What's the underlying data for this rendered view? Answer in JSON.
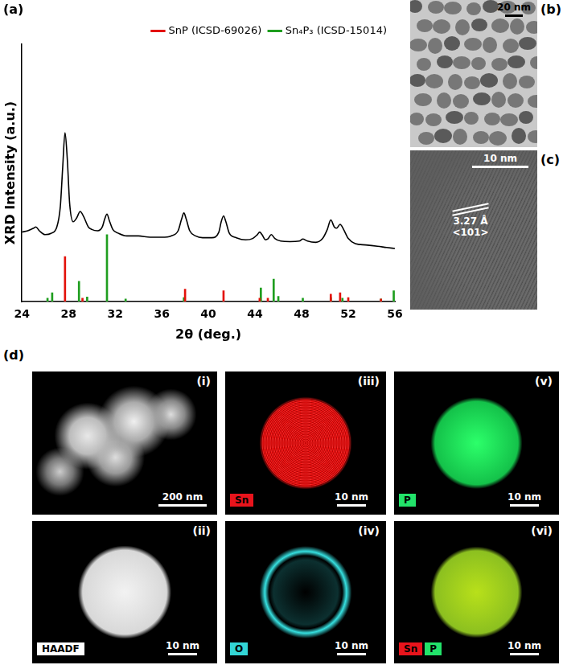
{
  "chart_data": {
    "type": "line",
    "label": "(a)",
    "x_label": "2θ (deg.)",
    "y_label": "XRD Intensity (a.u.)",
    "xlim": [
      24,
      56
    ],
    "xticks": [
      24,
      28,
      32,
      36,
      40,
      44,
      48,
      52,
      56
    ],
    "ylim": [
      0,
      100
    ],
    "tick_labels": "x",
    "grid": false,
    "legend": "upper right",
    "series": [
      {
        "type": "line",
        "color": "#000000",
        "x": [
          24,
          24.5,
          25,
          25.2,
          25.5,
          26,
          26.5,
          27,
          27.3,
          27.5,
          27.7,
          27.9,
          28.1,
          28.4,
          28.7,
          29,
          29.3,
          29.7,
          30,
          30.5,
          30.9,
          31.1,
          31.3,
          31.5,
          31.8,
          32.3,
          33,
          34,
          35,
          36,
          36.8,
          37.4,
          37.7,
          37.9,
          38.1,
          38.4,
          38.9,
          39.5,
          40.3,
          40.9,
          41.1,
          41.3,
          41.5,
          41.8,
          42.4,
          43.2,
          43.8,
          44.2,
          44.4,
          44.6,
          44.9,
          45.1,
          45.4,
          45.7,
          46.2,
          47,
          47.8,
          48.1,
          48.5,
          49.2,
          49.8,
          50.2,
          50.5,
          50.8,
          51.0,
          51.3,
          51.6,
          52.0,
          52.6,
          53.5,
          54.5,
          55.3,
          56
        ],
        "values": [
          27,
          27.5,
          28.5,
          29,
          27.5,
          26,
          26.5,
          29,
          37,
          52,
          65.6,
          55,
          38,
          31,
          32.5,
          35,
          33,
          29,
          28,
          27.5,
          29,
          32,
          34,
          31.5,
          28,
          26.5,
          25.5,
          25.5,
          25,
          25,
          25.5,
          27.5,
          32,
          34.4,
          32,
          27.5,
          25.5,
          24.8,
          24.8,
          27,
          31,
          33.3,
          31,
          26.5,
          24.8,
          24,
          24.5,
          26,
          27,
          26,
          24,
          24.3,
          26,
          24.5,
          23.5,
          23.3,
          23.5,
          24.3,
          23.5,
          23,
          24.5,
          28,
          31.7,
          29,
          28.5,
          30,
          28,
          24.5,
          22.5,
          22,
          21.5,
          21,
          20.6
        ]
      },
      {
        "name": "SnP (ICSD-69026)",
        "type": "bar",
        "color": "#e3120b",
        "x": [
          27.7,
          29.2,
          38.0,
          41.3,
          44.4,
          45.1,
          50.5,
          51.3,
          52.0,
          54.8
        ],
        "values": [
          17.5,
          1.3,
          4.8,
          4.2,
          1.3,
          1.3,
          2.9,
          3.4,
          1.5,
          1.0
        ]
      },
      {
        "name": "Sn₄P₃ (ICSD-15014)",
        "type": "bar",
        "color": "#1f9e1f",
        "x": [
          26.2,
          26.6,
          28.9,
          29.6,
          31.3,
          32.9,
          37.9,
          44.5,
          45.6,
          46.0,
          48.1,
          50.5,
          51.5,
          54.8,
          55.9
        ],
        "values": [
          1.3,
          3.4,
          7.9,
          1.8,
          26,
          1,
          1.5,
          5.3,
          8.7,
          2,
          1.3,
          1.5,
          1.3,
          1,
          4.2
        ]
      }
    ]
  },
  "panels": {
    "b": {
      "label": "(b)",
      "scale_bar": "20 nm"
    },
    "c": {
      "label": "(c)",
      "scale_bar": "10 nm",
      "d_spacing": "3.27 Å",
      "plane": "<101>"
    },
    "d": {
      "label": "(d)",
      "maps": [
        {
          "label": "(i)",
          "scale_bar": "200 nm"
        },
        {
          "label": "(ii)",
          "tags": [
            {
              "text": "HAADF",
              "color": "#ffffff"
            }
          ],
          "scale_bar": "10 nm"
        },
        {
          "label": "(iii)",
          "tags": [
            {
              "text": "Sn",
              "color": "#e8141c"
            }
          ],
          "scale_bar": "10 nm"
        },
        {
          "label": "(iv)",
          "tags": [
            {
              "text": "O",
              "color": "#33d6d6"
            }
          ],
          "scale_bar": "10 nm"
        },
        {
          "label": "(v)",
          "tags": [
            {
              "text": "P",
              "color": "#22e36a"
            }
          ],
          "scale_bar": "10 nm"
        },
        {
          "label": "(vi)",
          "tags": [
            {
              "text": "Sn",
              "color": "#e8141c"
            },
            {
              "text": "P",
              "color": "#22e36a"
            }
          ],
          "scale_bar": "10 nm"
        }
      ]
    }
  }
}
